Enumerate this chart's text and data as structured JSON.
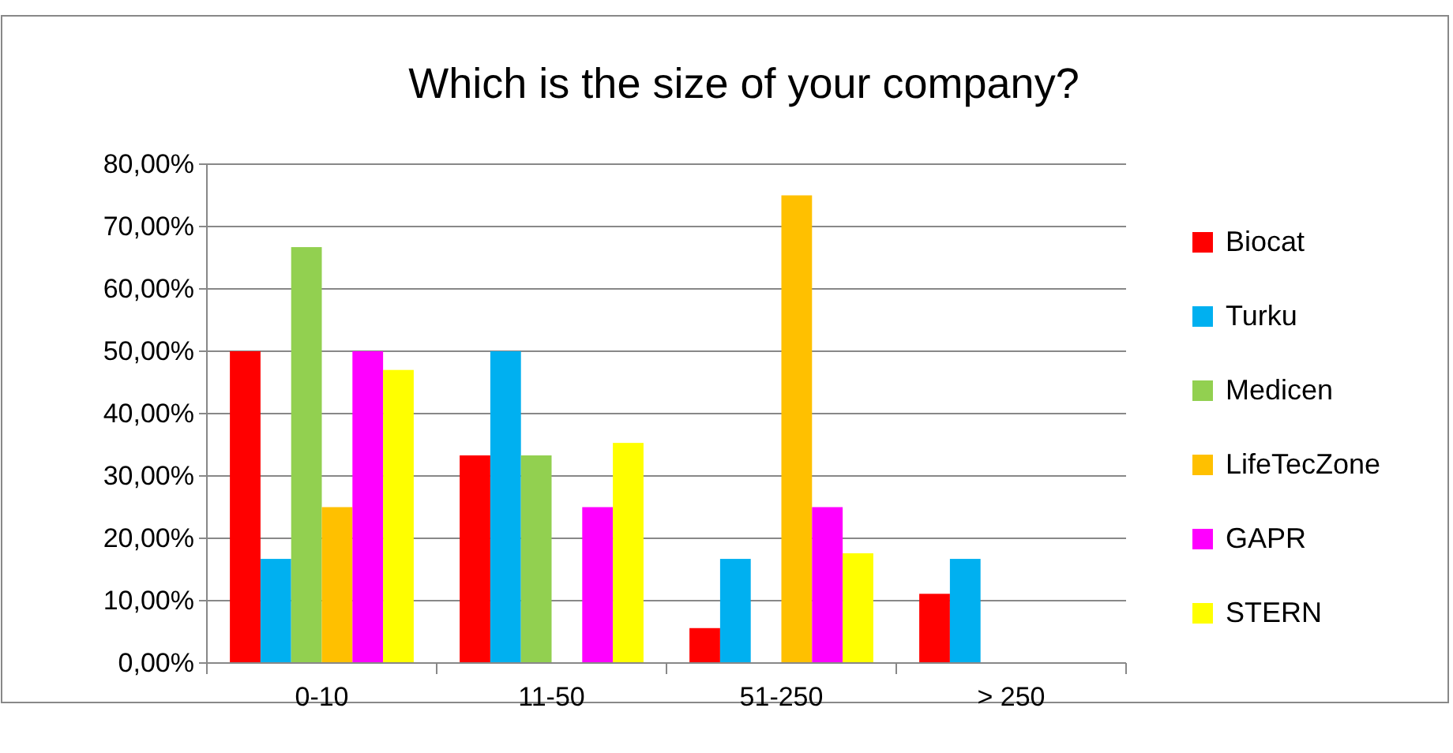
{
  "chart_data": {
    "type": "bar",
    "title": "Which is the size of your company?",
    "categories": [
      "0-10",
      "11-50",
      "51-250",
      "> 250"
    ],
    "series": [
      {
        "name": "Biocat",
        "color": "#ff0000",
        "values": [
          50,
          33.3,
          5.6,
          11.1
        ]
      },
      {
        "name": "Turku",
        "color": "#00b0f0",
        "values": [
          16.7,
          50,
          16.7,
          16.7
        ]
      },
      {
        "name": "Medicen",
        "color": "#92d050",
        "values": [
          66.7,
          33.3,
          0,
          0
        ]
      },
      {
        "name": "LifeTecZone",
        "color": "#ffc000",
        "values": [
          25,
          0,
          75,
          0
        ]
      },
      {
        "name": "GAPR",
        "color": "#ff00ff",
        "values": [
          50,
          25,
          25,
          0
        ]
      },
      {
        "name": "STERN",
        "color": "#ffff00",
        "values": [
          47,
          35.3,
          17.6,
          0
        ]
      }
    ],
    "ylim": [
      0,
      80
    ],
    "yticks": [
      {
        "value": 0,
        "label": "0,00%"
      },
      {
        "value": 10,
        "label": "10,00%"
      },
      {
        "value": 20,
        "label": "20,00%"
      },
      {
        "value": 30,
        "label": "30,00%"
      },
      {
        "value": 40,
        "label": "40,00%"
      },
      {
        "value": 50,
        "label": "50,00%"
      },
      {
        "value": 60,
        "label": "60,00%"
      },
      {
        "value": 70,
        "label": "70,00%"
      },
      {
        "value": 80,
        "label": "80,00%"
      }
    ],
    "grid": "y",
    "legend": "right"
  }
}
